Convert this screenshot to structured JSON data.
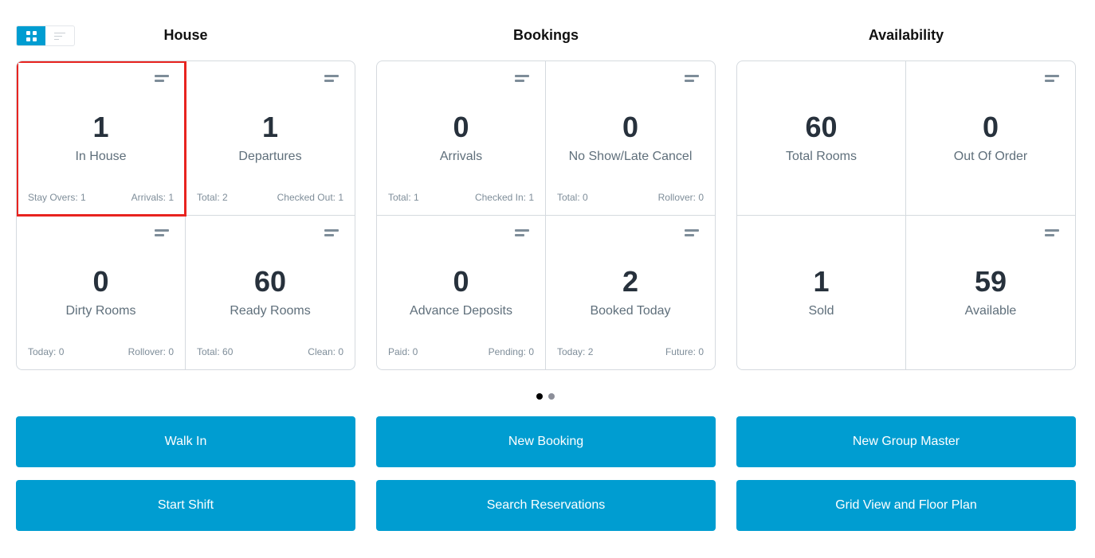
{
  "view_toggle": {
    "active": "grid"
  },
  "accent_color": "#009dd1",
  "sections": [
    {
      "title": "House",
      "tiles": [
        {
          "value": "1",
          "label": "In House",
          "left": "Stay Overs: 1",
          "right": "Arrivals: 1",
          "menu": true,
          "selected": true
        },
        {
          "value": "1",
          "label": "Departures",
          "left": "Total: 2",
          "right": "Checked Out: 1",
          "menu": true
        },
        {
          "value": "0",
          "label": "Dirty Rooms",
          "left": "Today: 0",
          "right": "Rollover: 0",
          "menu": true
        },
        {
          "value": "60",
          "label": "Ready Rooms",
          "left": "Total: 60",
          "right": "Clean: 0",
          "menu": true
        }
      ]
    },
    {
      "title": "Bookings",
      "tiles": [
        {
          "value": "0",
          "label": "Arrivals",
          "left": "Total: 1",
          "right": "Checked In: 1",
          "menu": true
        },
        {
          "value": "0",
          "label": "No Show/Late Cancel",
          "left": "Total: 0",
          "right": "Rollover: 0",
          "menu": true
        },
        {
          "value": "0",
          "label": "Advance Deposits",
          "left": "Paid: 0",
          "right": "Pending: 0",
          "menu": true
        },
        {
          "value": "2",
          "label": "Booked Today",
          "left": "Today: 2",
          "right": "Future: 0",
          "menu": true
        }
      ]
    },
    {
      "title": "Availability",
      "tiles": [
        {
          "value": "60",
          "label": "Total Rooms",
          "menu": false
        },
        {
          "value": "0",
          "label": "Out Of Order",
          "menu": true
        },
        {
          "value": "1",
          "label": "Sold",
          "menu": false
        },
        {
          "value": "59",
          "label": "Available",
          "menu": true
        }
      ]
    }
  ],
  "pager": {
    "pages": 2,
    "current": 1
  },
  "buttons": [
    [
      "Walk In",
      "Start Shift"
    ],
    [
      "New Booking",
      "Search Reservations"
    ],
    [
      "New Group Master",
      "Grid View and Floor Plan"
    ]
  ]
}
